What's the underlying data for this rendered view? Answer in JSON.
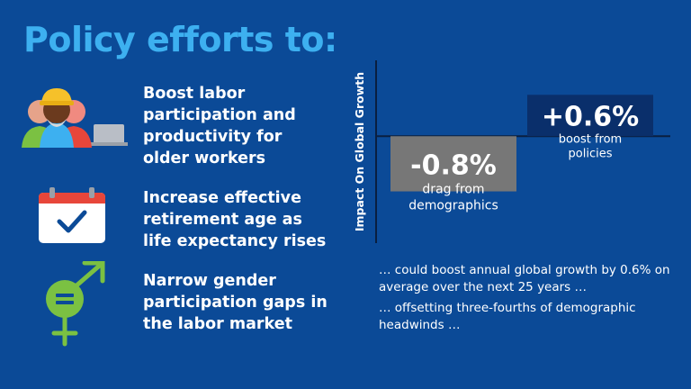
{
  "slide": {
    "title": "Policy efforts to:",
    "policies": [
      {
        "icon": "older-workers-icon",
        "text": "Boost labor participation and productivity for older workers"
      },
      {
        "icon": "calendar-check-icon",
        "text": "Increase effective retirement age as life expectancy rises"
      },
      {
        "icon": "gender-symbol-icon",
        "text": "Narrow gender participation gaps in the labor market"
      }
    ],
    "notes": [
      "… could boost annual global growth by 0.6% on average over the next 25 years …",
      "… offsetting three-fourths of demographic headwinds …"
    ]
  },
  "chart_data": {
    "type": "bar",
    "ylabel": "Impact On Global Growth",
    "categories": [
      "drag from demographics",
      "boost from policies"
    ],
    "values": [
      -0.8,
      0.6
    ],
    "value_labels": [
      "-0.8%",
      "+0.6%"
    ],
    "bar_labels": [
      [
        "drag from",
        "demographics"
      ],
      [
        "boost from",
        "policies"
      ]
    ],
    "colors": [
      "#777777",
      "#0a2f6b"
    ],
    "ylim": [
      -1.55,
      1.1
    ],
    "grid": false,
    "legend": "none"
  },
  "colors": {
    "background": "#0b4a97",
    "title": "#3db0f0",
    "icon_green": "#7bc142"
  }
}
